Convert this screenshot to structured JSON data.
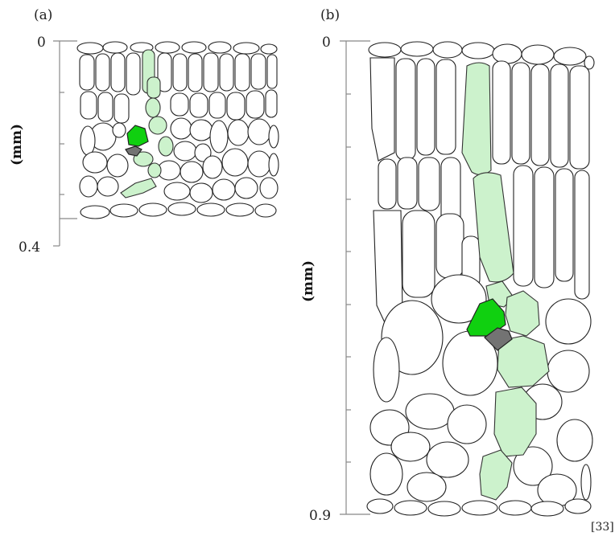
{
  "panel_a": {
    "label": "(a)",
    "axis_unit": "(mm)",
    "ticks": [
      "0",
      "0.4"
    ]
  },
  "panel_b": {
    "label": "(b)",
    "axis_unit": "(mm)",
    "ticks": [
      "0",
      "0.9"
    ]
  },
  "citation": "[33]",
  "colors": {
    "light_green": "#ccf2cc",
    "dark_green": "#10d010",
    "gray": "#737373"
  }
}
